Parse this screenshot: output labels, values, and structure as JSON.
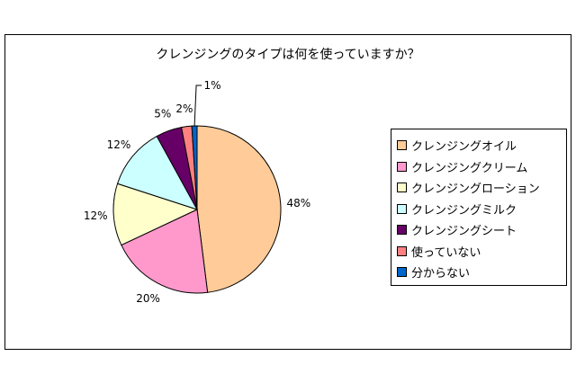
{
  "chart_data": {
    "type": "pie",
    "title": "クレンジングのタイプは何を使っていますか？",
    "legend_position": "right",
    "slices": [
      {
        "label": "クレンジングオイル",
        "value": 48,
        "data_label": "48%",
        "color": "#FFCC99"
      },
      {
        "label": "クレンジングクリーム",
        "value": 20,
        "data_label": "20%",
        "color": "#FF99CC"
      },
      {
        "label": "クレンジングローション",
        "value": 12,
        "data_label": "12%",
        "color": "#FFFFCC"
      },
      {
        "label": "クレンジングミルク",
        "value": 12,
        "data_label": "12%",
        "color": "#CCFFFF"
      },
      {
        "label": "クレンジングシート",
        "value": 5,
        "data_label": "5%",
        "color": "#660066"
      },
      {
        "label": "使っていない",
        "value": 2,
        "data_label": "2%",
        "color": "#FF8080"
      },
      {
        "label": "分からない",
        "value": 1,
        "data_label": "1%",
        "color": "#0066CC"
      }
    ]
  }
}
